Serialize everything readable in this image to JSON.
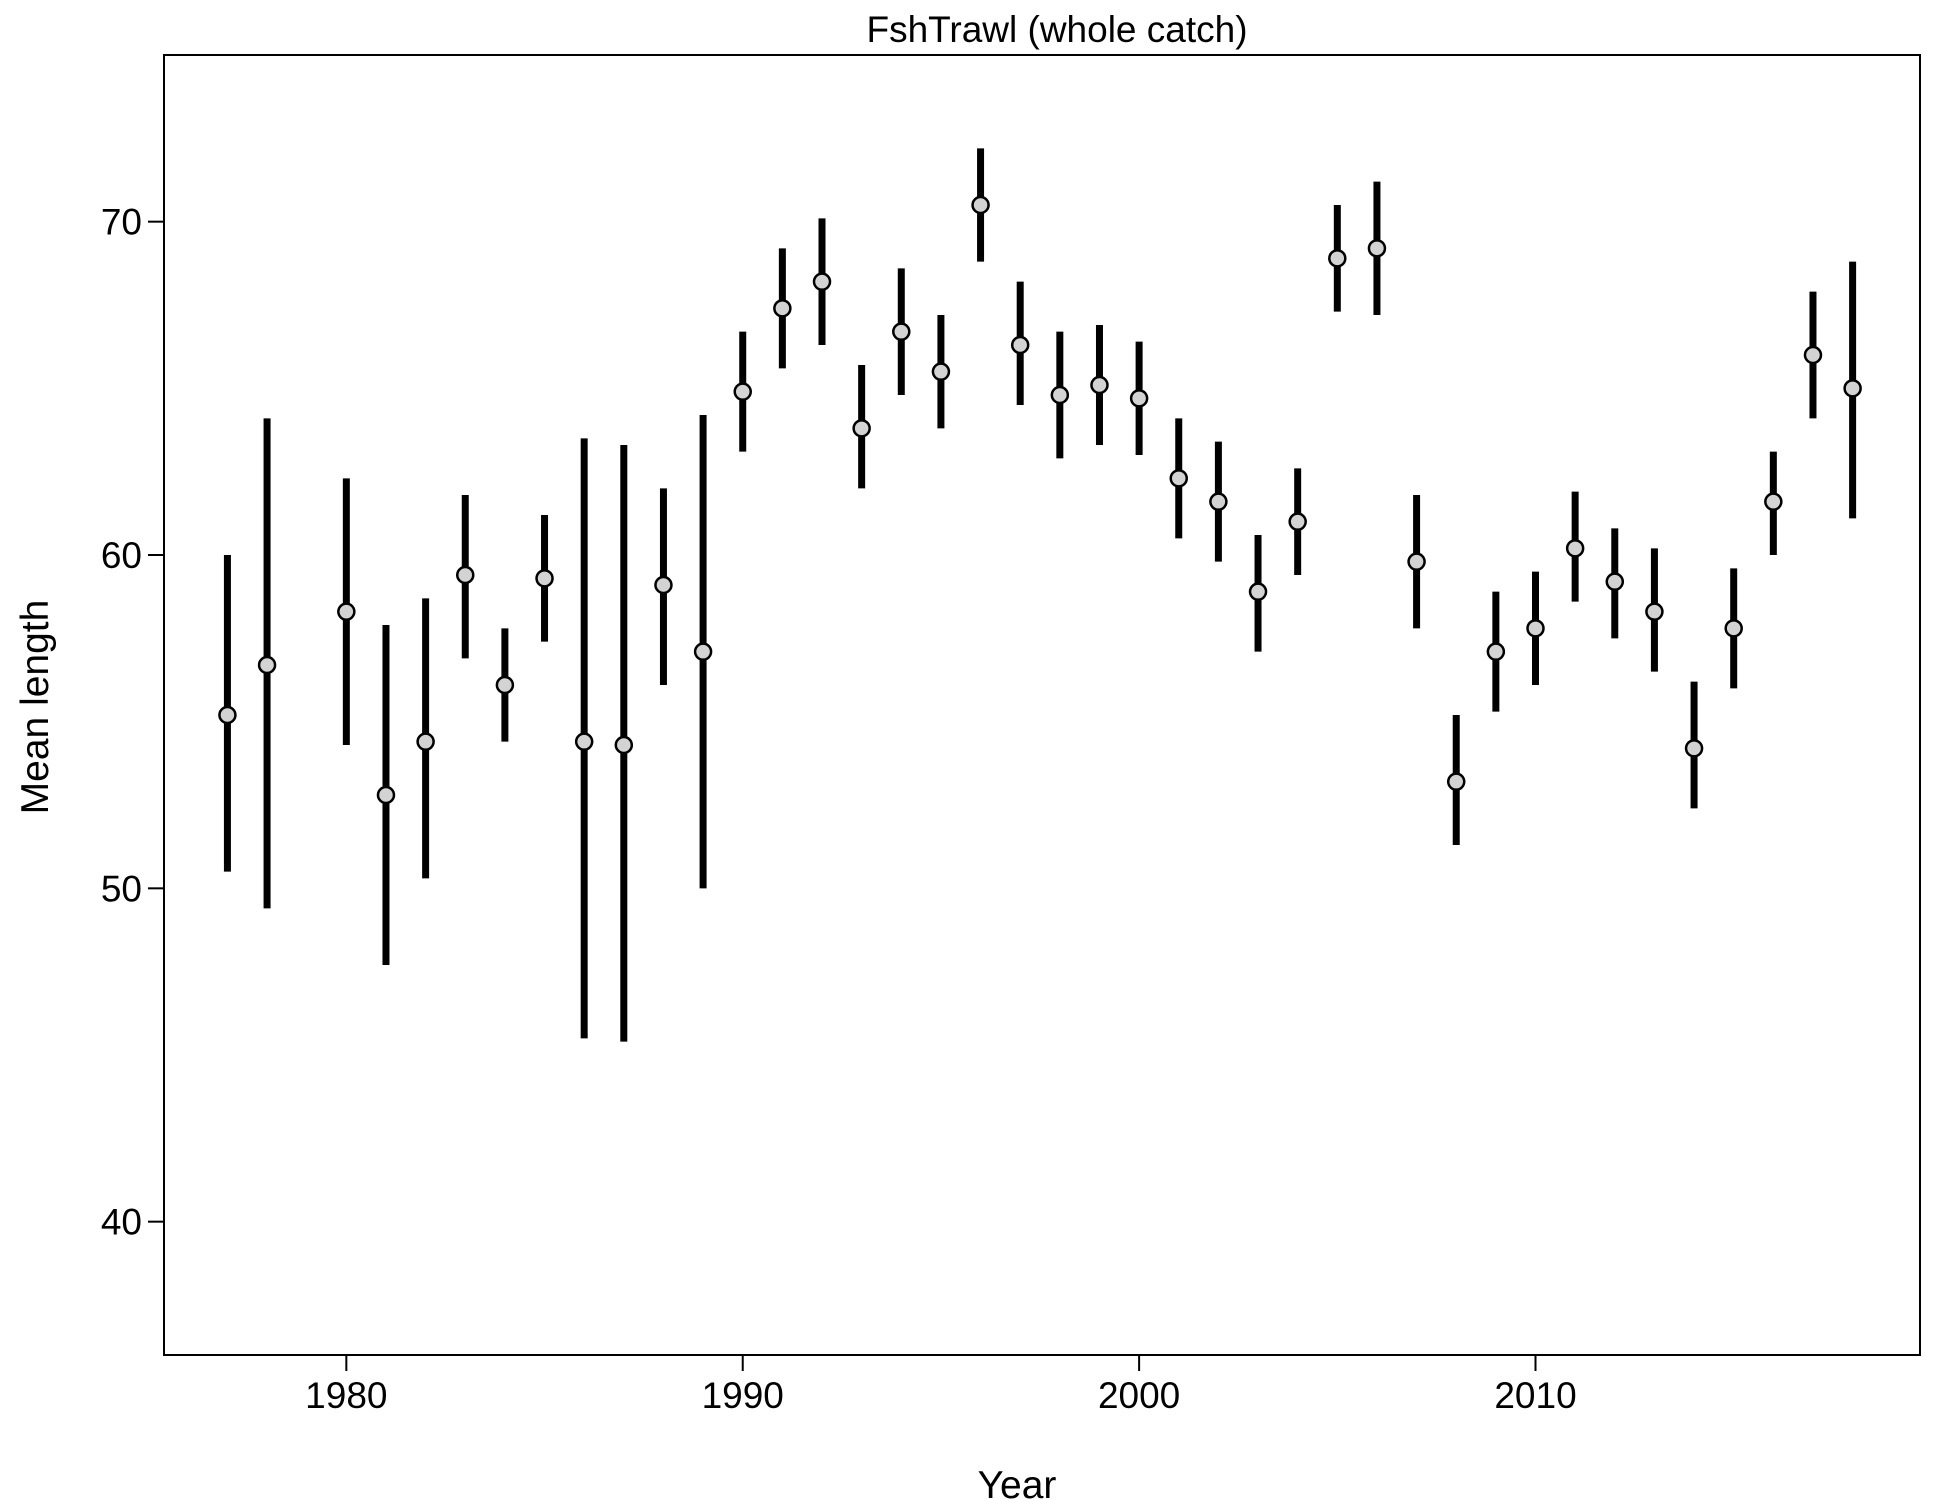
{
  "chart_data": {
    "type": "scatter",
    "title": "FshTrawl (whole catch)",
    "xlabel": "Year",
    "ylabel": "Mean length",
    "xlim": [
      1975.4,
      2019.7
    ],
    "ylim": [
      36.0,
      75.0
    ],
    "xticks": [
      "1980",
      "1990",
      "2000",
      "2010"
    ],
    "yticks": [
      "40",
      "50",
      "60",
      "70"
    ],
    "grid": false,
    "legend": "none",
    "colors": {
      "errorbar": "#000000",
      "point_fill": "#d3d3d3",
      "point_stroke": "#000000"
    },
    "series": [
      {
        "x": [
          1977,
          1978,
          1980,
          1981,
          1982,
          1983,
          1984,
          1985,
          1986,
          1987,
          1988,
          1989,
          1990,
          1991,
          1992,
          1993,
          1994,
          1995,
          1996,
          1997,
          1998,
          1999,
          2000,
          2001,
          2002,
          2003,
          2004,
          2005,
          2006,
          2007,
          2008,
          2009,
          2010,
          2011,
          2012,
          2013,
          2014,
          2015,
          2016,
          2017,
          2018
        ],
        "y": [
          55.2,
          56.7,
          58.3,
          52.8,
          54.4,
          59.4,
          56.1,
          59.3,
          54.4,
          54.3,
          59.1,
          57.1,
          64.9,
          67.4,
          68.2,
          63.8,
          66.7,
          65.5,
          70.5,
          66.3,
          64.8,
          65.1,
          64.7,
          62.3,
          61.6,
          58.9,
          61.0,
          68.9,
          69.2,
          59.8,
          53.2,
          57.1,
          57.8,
          60.2,
          59.2,
          58.3,
          54.2,
          57.8,
          61.6,
          66.0,
          65.0
        ],
        "lower": [
          50.5,
          49.4,
          54.3,
          47.7,
          50.3,
          56.9,
          54.4,
          57.4,
          45.5,
          45.4,
          56.1,
          50.0,
          63.1,
          65.6,
          66.3,
          62.0,
          64.8,
          63.8,
          68.8,
          64.5,
          62.9,
          63.3,
          63.0,
          60.5,
          59.8,
          57.1,
          59.4,
          67.3,
          67.2,
          57.8,
          51.3,
          55.3,
          56.1,
          58.6,
          57.5,
          56.5,
          52.4,
          56.0,
          60.0,
          64.1,
          61.1
        ],
        "upper": [
          60.0,
          64.1,
          62.3,
          57.9,
          58.7,
          61.8,
          57.8,
          61.2,
          63.5,
          63.3,
          62.0,
          64.2,
          66.7,
          69.2,
          70.1,
          65.7,
          68.6,
          67.2,
          72.2,
          68.2,
          66.7,
          66.9,
          66.4,
          64.1,
          63.4,
          60.6,
          62.6,
          70.5,
          71.2,
          61.8,
          55.2,
          58.9,
          59.5,
          61.9,
          60.8,
          60.2,
          56.2,
          59.6,
          63.1,
          67.9,
          68.8
        ]
      }
    ]
  }
}
